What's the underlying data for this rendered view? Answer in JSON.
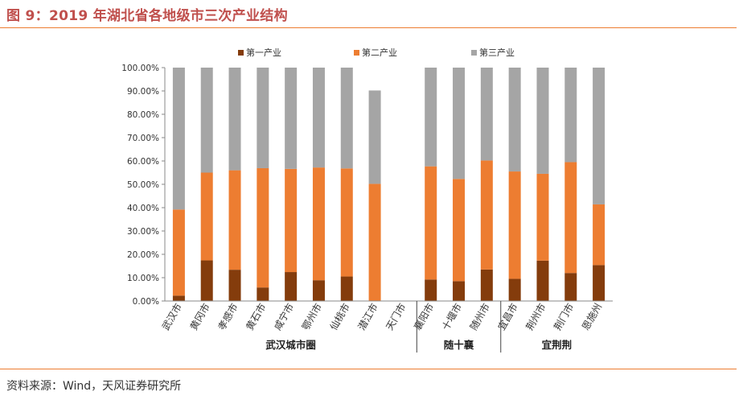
{
  "figure": {
    "title": "图 9：2019 年湖北省各地级市三次产业结构",
    "source": "资料来源：Wind，天风证券研究所"
  },
  "colors": {
    "primary": "#843c0c",
    "secondary": "#ed7d31",
    "tertiary": "#a5a5a5",
    "title": "#c0504d",
    "rule": "#ed7d31"
  },
  "chart_data": {
    "type": "bar",
    "stacked": true,
    "categories": [
      "武汉市",
      "黄冈市",
      "孝感市",
      "黄石市",
      "咸宁市",
      "鄂州市",
      "仙桃市",
      "潜江市",
      "天门市",
      "襄阳市",
      "十堰市",
      "随州市",
      "宜昌市",
      "荆州市",
      "荆门市",
      "恩施州"
    ],
    "series": [
      {
        "name": "第一产业",
        "color": "#843c0c",
        "values": [
          2.3,
          17.4,
          13.4,
          5.8,
          12.4,
          8.9,
          10.5,
          0,
          0,
          9.2,
          8.5,
          13.5,
          9.5,
          17.3,
          12.0,
          15.4
        ]
      },
      {
        "name": "第二产业",
        "color": "#ed7d31",
        "values": [
          36.9,
          37.6,
          42.6,
          51.1,
          44.2,
          48.3,
          46.3,
          50.2,
          0,
          48.5,
          43.8,
          46.7,
          46.0,
          37.2,
          47.5,
          26.0
        ]
      },
      {
        "name": "第三产业",
        "color": "#a5a5a5",
        "values": [
          60.8,
          45.0,
          44.0,
          43.1,
          43.4,
          42.8,
          43.2,
          40.0,
          0,
          42.3,
          47.7,
          39.8,
          44.5,
          45.5,
          40.5,
          58.6
        ]
      }
    ],
    "groups": [
      {
        "label": "武汉城市圈",
        "start": 0,
        "end": 8
      },
      {
        "label": "随十襄",
        "start": 9,
        "end": 11
      },
      {
        "label": "宜荆荆",
        "start": 12,
        "end": 15
      }
    ],
    "y_ticks": [
      "0.00%",
      "10.00%",
      "20.00%",
      "30.00%",
      "40.00%",
      "50.00%",
      "60.00%",
      "70.00%",
      "80.00%",
      "90.00%",
      "100.00%"
    ],
    "ylim": [
      0,
      100
    ],
    "legend_position": "top",
    "grid": false
  }
}
